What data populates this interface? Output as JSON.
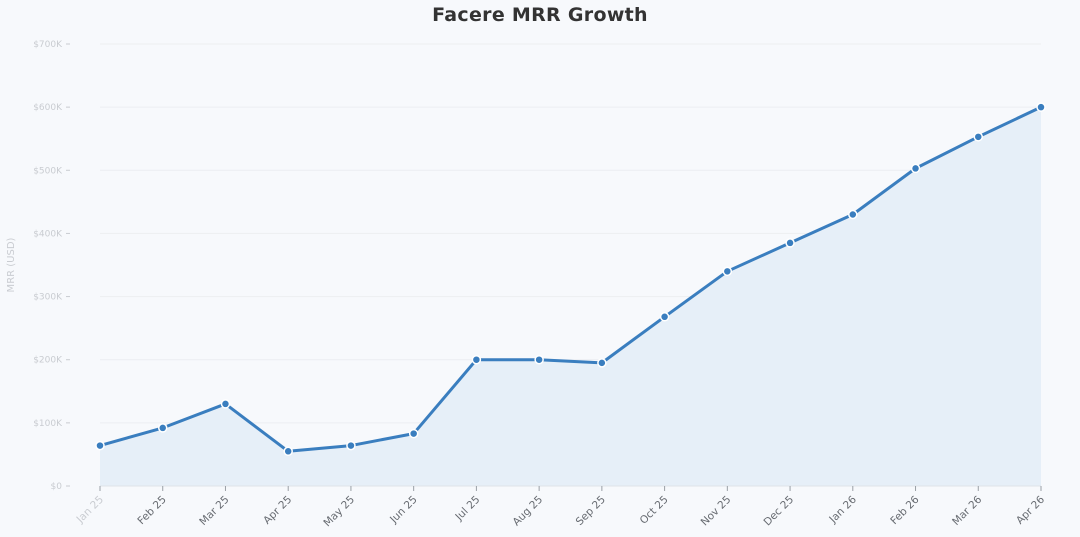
{
  "chart_data": {
    "type": "area",
    "title": "Facere MRR Growth",
    "xlabel": "",
    "ylabel": "MRR (USD)",
    "ylim": [
      0,
      700000
    ],
    "yticks": [
      {
        "value": 0,
        "label": "$0"
      },
      {
        "value": 100000,
        "label": "$100K"
      },
      {
        "value": 200000,
        "label": "$200K"
      },
      {
        "value": 300000,
        "label": "$300K"
      },
      {
        "value": 400000,
        "label": "$400K"
      },
      {
        "value": 500000,
        "label": "$500K"
      },
      {
        "value": 600000,
        "label": "$600K"
      },
      {
        "value": 700000,
        "label": "$700K"
      }
    ],
    "categories": [
      "Jan 25",
      "Feb 25",
      "Mar 25",
      "Apr 25",
      "May 25",
      "Jun 25",
      "Jul 25",
      "Aug 25",
      "Sep 25",
      "Oct 25",
      "Nov 25",
      "Dec 25",
      "Jan 26",
      "Feb 26",
      "Mar 26",
      "Apr 26"
    ],
    "series": [
      {
        "values": [
          64000,
          92000,
          130000,
          55000,
          64000,
          83000,
          200000,
          200000,
          195000,
          268000,
          340000,
          385000,
          430000,
          503000,
          553000,
          600000
        ]
      }
    ],
    "grid": true,
    "legend": "none",
    "colors": {
      "line": "#3a7ebf",
      "fill": "#e6eff8",
      "grid": "#eceef1",
      "axis": "#c9ccd1",
      "title": "#333333"
    }
  }
}
